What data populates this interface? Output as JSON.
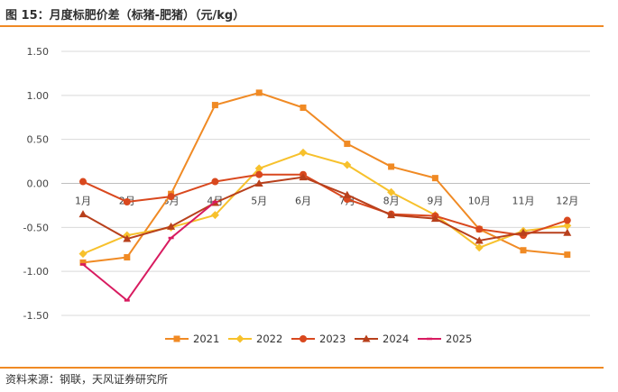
{
  "figure": {
    "title": "图 15：月度标肥价差（标猪-肥猪）（元/kg）",
    "source": "资料来源：钢联，天风证券研究所"
  },
  "chart_data": {
    "type": "line",
    "categories": [
      "1月",
      "2月",
      "3月",
      "4月",
      "5月",
      "6月",
      "7月",
      "8月",
      "9月",
      "10月",
      "11月",
      "12月"
    ],
    "ylim": [
      -1.5,
      1.5
    ],
    "yticks": [
      "1.50",
      "1.00",
      "0.50",
      "0.00",
      "-0.50",
      "-1.00",
      "-1.50"
    ],
    "ytick_values": [
      1.5,
      1.0,
      0.5,
      0.0,
      -0.5,
      -1.0,
      -1.5
    ],
    "grid": true,
    "legend_position": "bottom",
    "series": [
      {
        "name": "2021",
        "color": "#f08a24",
        "marker": "square",
        "values": [
          -0.9,
          -0.84,
          -0.12,
          0.89,
          1.03,
          0.86,
          0.45,
          0.19,
          0.06,
          -0.52,
          -0.76,
          -0.81
        ]
      },
      {
        "name": "2022",
        "color": "#f7c12c",
        "marker": "diamond",
        "values": [
          -0.8,
          -0.59,
          -0.5,
          -0.36,
          0.17,
          0.35,
          0.21,
          -0.1,
          -0.36,
          -0.73,
          -0.54,
          -0.48
        ]
      },
      {
        "name": "2023",
        "color": "#d9481e",
        "marker": "circle",
        "values": [
          0.02,
          -0.21,
          -0.15,
          0.02,
          0.1,
          0.1,
          -0.18,
          -0.35,
          -0.37,
          -0.52,
          -0.59,
          -0.42
        ]
      },
      {
        "name": "2024",
        "color": "#b8401c",
        "marker": "triangle",
        "values": [
          -0.35,
          -0.63,
          -0.49,
          -0.22,
          0.0,
          0.07,
          -0.13,
          -0.36,
          -0.4,
          -0.65,
          -0.56,
          -0.56
        ]
      },
      {
        "name": "2025",
        "color": "#d81b60",
        "marker": "dash",
        "values": [
          -0.92,
          -1.33,
          -0.62,
          -0.21,
          null,
          null,
          null,
          null,
          null,
          null,
          null,
          null
        ]
      }
    ]
  }
}
